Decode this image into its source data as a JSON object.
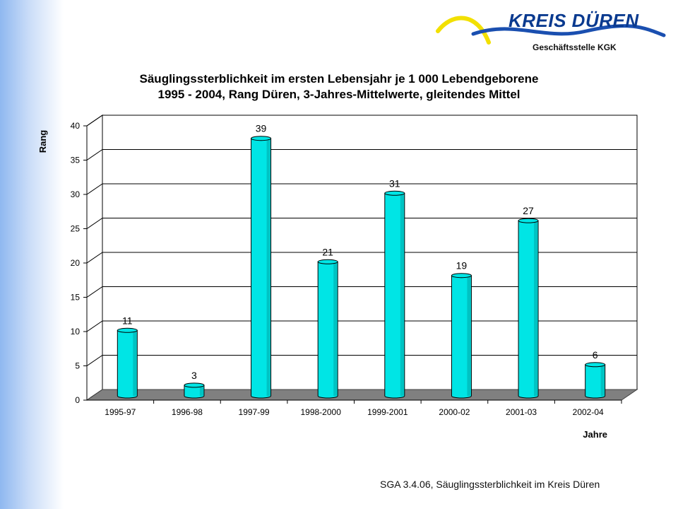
{
  "header": {
    "logo_text": "KREIS DÜREN",
    "subtitle": "Geschäftsstelle  KGK"
  },
  "chart_data": {
    "type": "bar",
    "title_line1": "Säuglingssterblichkeit im ersten Lebensjahr je 1 000 Lebendgeborene",
    "title_line2": "1995 - 2004, Rang Düren,  3-Jahres-Mittelwerte, gleitendes Mittel",
    "xlabel": "Jahre",
    "ylabel": "Rang",
    "ylim": [
      0,
      40
    ],
    "yticks": [
      0,
      5,
      10,
      15,
      20,
      25,
      30,
      35,
      40
    ],
    "grid": true,
    "categories": [
      "1995-97",
      "1996-98",
      "1997-99",
      "1998-2000",
      "1999-2001",
      "2000-02",
      "2001-03",
      "2002-04"
    ],
    "values": [
      11,
      3,
      39,
      21,
      31,
      19,
      27,
      6
    ],
    "bar_color": "#00e5e5",
    "floor_color": "#808080"
  },
  "footer": {
    "text": "SGA 3.4.06, Säuglingssterblichkeit im Kreis Düren"
  }
}
